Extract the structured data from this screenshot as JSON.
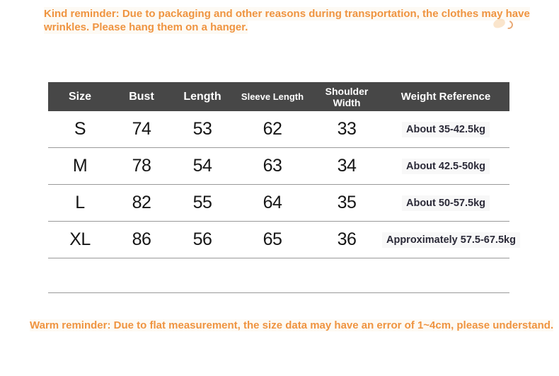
{
  "reminder_top": {
    "lines": [
      "Kind reminder: Due to packaging and other reasons during transportation, the clothes may have",
      "wrinkles. Please hang them on a hanger."
    ]
  },
  "table": {
    "headers": [
      "Size",
      "Bust",
      "Length",
      "Sleeve Length",
      "Shoulder Width",
      "Weight Reference"
    ],
    "rows": [
      [
        "S",
        "74",
        "53",
        "62",
        "33",
        "About 35-42.5kg"
      ],
      [
        "M",
        "78",
        "54",
        "63",
        "34",
        "About 42.5-50kg"
      ],
      [
        "L",
        "82",
        "55",
        "64",
        "35",
        "About 50-57.5kg"
      ],
      [
        "XL",
        "86",
        "56",
        "65",
        "36",
        "Approximately 57.5-67.5kg"
      ]
    ]
  },
  "reminder_bottom": {
    "text": "Warm reminder: Due to flat measurement, the size data may have an error of 1~4cm, please understand."
  },
  "colors": {
    "accent_orange": "#EF9440",
    "header_background": "#474747",
    "row_divider": "#9A9A9A",
    "weight_highlight": "#F8F8F8",
    "number_text": "#161616",
    "weight_text": "#2B2A38"
  }
}
